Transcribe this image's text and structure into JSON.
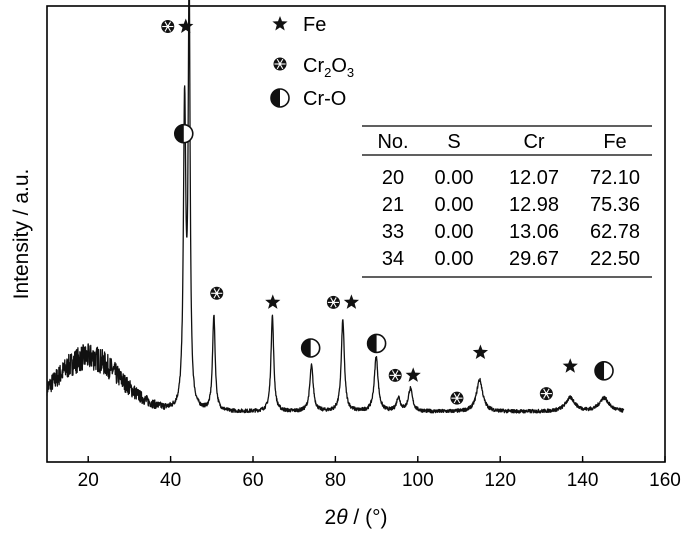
{
  "chart_data": {
    "type": "line",
    "xlabel_prefix": "2",
    "xlabel_symbol": "θ",
    "xlabel_unit": " / (°)",
    "ylabel": "Intensity / a.u.",
    "xlim": [
      10,
      160
    ],
    "xticks": [
      20,
      40,
      60,
      80,
      100,
      120,
      140,
      160
    ],
    "ylim": [
      0,
      1
    ],
    "yticks_shown": false,
    "grid": false,
    "baseline": 0.11,
    "hump": {
      "center": 20,
      "amplitude": 0.12,
      "width": 11,
      "noise": 0.025
    },
    "peaks": [
      {
        "x": 43.4,
        "y": 0.66,
        "w": 0.35
      },
      {
        "x": 44.5,
        "y": 0.92,
        "w": 0.28
      },
      {
        "x": 50.5,
        "y": 0.21,
        "w": 0.38
      },
      {
        "x": 64.7,
        "y": 0.21,
        "w": 0.4
      },
      {
        "x": 74.2,
        "y": 0.1,
        "w": 0.5
      },
      {
        "x": 81.8,
        "y": 0.2,
        "w": 0.45
      },
      {
        "x": 89.9,
        "y": 0.12,
        "w": 0.55
      },
      {
        "x": 95.3,
        "y": 0.03,
        "w": 0.55
      },
      {
        "x": 98.2,
        "y": 0.05,
        "w": 0.6
      },
      {
        "x": 115.0,
        "y": 0.07,
        "w": 0.9
      },
      {
        "x": 137.0,
        "y": 0.03,
        "w": 1.4
      },
      {
        "x": 145.2,
        "y": 0.03,
        "w": 1.4
      }
    ],
    "x_end": 150,
    "phase_markers": [
      {
        "x": 41.5,
        "y": 0.955,
        "symbols": [
          "cr2o3",
          "fe"
        ]
      },
      {
        "x": 43.2,
        "y": 0.72,
        "symbols": [
          "cro"
        ]
      },
      {
        "x": 51.2,
        "y": 0.37,
        "symbols": [
          "cr2o3"
        ]
      },
      {
        "x": 64.8,
        "y": 0.35,
        "symbols": [
          "fe"
        ]
      },
      {
        "x": 81.7,
        "y": 0.35,
        "symbols": [
          "cr2o3",
          "fe"
        ]
      },
      {
        "x": 74.0,
        "y": 0.25,
        "symbols": [
          "cro"
        ]
      },
      {
        "x": 90.0,
        "y": 0.26,
        "symbols": [
          "cro"
        ]
      },
      {
        "x": 96.7,
        "y": 0.19,
        "symbols": [
          "cr2o3",
          "fe"
        ]
      },
      {
        "x": 109.5,
        "y": 0.14,
        "symbols": [
          "cr2o3"
        ]
      },
      {
        "x": 115.2,
        "y": 0.24,
        "symbols": [
          "fe"
        ]
      },
      {
        "x": 131.2,
        "y": 0.15,
        "symbols": [
          "cr2o3"
        ]
      },
      {
        "x": 137.0,
        "y": 0.21,
        "symbols": [
          "fe"
        ]
      },
      {
        "x": 145.2,
        "y": 0.2,
        "symbols": [
          "cro"
        ]
      }
    ],
    "legend": {
      "position": "top-center",
      "entries": [
        {
          "symbol": "fe",
          "label": "Fe"
        },
        {
          "symbol": "cr2o3",
          "label_base": "Cr",
          "label_sub1": "2",
          "label_mid": "O",
          "label_sub2": "3"
        },
        {
          "symbol": "cro",
          "label": "Cr-O"
        }
      ]
    },
    "table": {
      "position": "top-right",
      "headers": [
        "No.",
        "S",
        "Cr",
        "Fe"
      ],
      "rows": [
        [
          "20",
          "0.00",
          "12.07",
          "72.10"
        ],
        [
          "21",
          "0.00",
          "12.98",
          "75.36"
        ],
        [
          "33",
          "0.00",
          "13.06",
          "62.78"
        ],
        [
          "34",
          "0.00",
          "29.67",
          "22.50"
        ]
      ]
    },
    "colors": {
      "line": "#111111",
      "axis": "#000000"
    }
  }
}
